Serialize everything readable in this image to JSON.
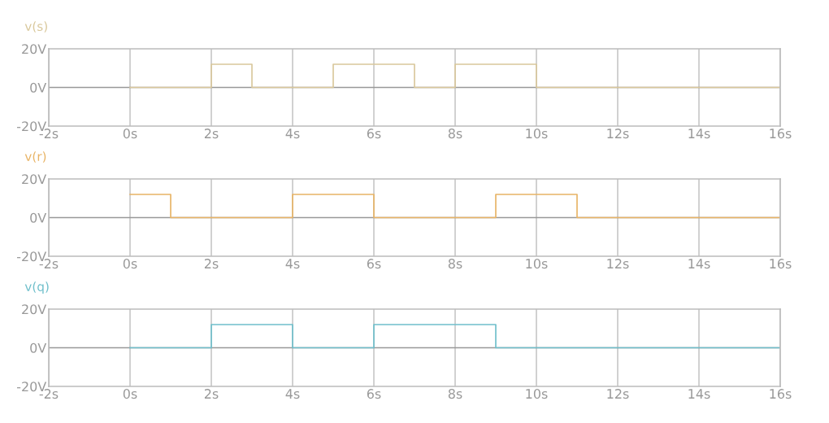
{
  "chart_data": [
    {
      "type": "step",
      "series": [
        {
          "name": "v(s)",
          "color": "#d9c89c",
          "x": [
            0,
            2,
            3,
            5,
            7,
            8,
            10,
            16
          ],
          "values": [
            0,
            12,
            0,
            12,
            0,
            12,
            0,
            0
          ]
        }
      ],
      "xlim": [
        -2,
        16
      ],
      "ylim": [
        -20,
        20
      ],
      "xticks": [
        {
          "value": -2,
          "label": "-2s"
        },
        {
          "value": 0,
          "label": "0s"
        },
        {
          "value": 2,
          "label": "2s"
        },
        {
          "value": 4,
          "label": "4s"
        },
        {
          "value": 6,
          "label": "6s"
        },
        {
          "value": 8,
          "label": "8s"
        },
        {
          "value": 10,
          "label": "10s"
        },
        {
          "value": 12,
          "label": "12s"
        },
        {
          "value": 14,
          "label": "14s"
        },
        {
          "value": 16,
          "label": "16s"
        }
      ],
      "yticks": [
        {
          "value": -20,
          "label": "-20V"
        },
        {
          "value": 0,
          "label": "0V"
        },
        {
          "value": 20,
          "label": "20V"
        }
      ],
      "grid": "x",
      "ref_lines": [
        {
          "axis": "y",
          "value": 0,
          "color": "#999999"
        }
      ]
    },
    {
      "type": "step",
      "series": [
        {
          "name": "v(r)",
          "color": "#e8b466",
          "x": [
            0,
            1,
            4,
            6,
            9,
            11,
            16
          ],
          "values": [
            12,
            0,
            12,
            0,
            12,
            0,
            0
          ]
        }
      ],
      "xlim": [
        -2,
        16
      ],
      "ylim": [
        -20,
        20
      ],
      "xticks": [
        {
          "value": -2,
          "label": "-2s"
        },
        {
          "value": 0,
          "label": "0s"
        },
        {
          "value": 2,
          "label": "2s"
        },
        {
          "value": 4,
          "label": "4s"
        },
        {
          "value": 6,
          "label": "6s"
        },
        {
          "value": 8,
          "label": "8s"
        },
        {
          "value": 10,
          "label": "10s"
        },
        {
          "value": 12,
          "label": "12s"
        },
        {
          "value": 14,
          "label": "14s"
        },
        {
          "value": 16,
          "label": "16s"
        }
      ],
      "yticks": [
        {
          "value": -20,
          "label": "-20V"
        },
        {
          "value": 0,
          "label": "0V"
        },
        {
          "value": 20,
          "label": "20V"
        }
      ],
      "grid": "x",
      "ref_lines": [
        {
          "axis": "y",
          "value": 0,
          "color": "#999999"
        }
      ]
    },
    {
      "type": "step",
      "series": [
        {
          "name": "v(q)",
          "color": "#6fbfcb",
          "x": [
            0,
            2,
            4,
            6,
            9,
            16
          ],
          "values": [
            0,
            12,
            0,
            12,
            0,
            0
          ]
        }
      ],
      "xlim": [
        -2,
        16
      ],
      "ylim": [
        -20,
        20
      ],
      "xticks": [
        {
          "value": -2,
          "label": "-2s"
        },
        {
          "value": 0,
          "label": "0s"
        },
        {
          "value": 2,
          "label": "2s"
        },
        {
          "value": 4,
          "label": "4s"
        },
        {
          "value": 6,
          "label": "6s"
        },
        {
          "value": 8,
          "label": "8s"
        },
        {
          "value": 10,
          "label": "10s"
        },
        {
          "value": 12,
          "label": "12s"
        },
        {
          "value": 14,
          "label": "14s"
        },
        {
          "value": 16,
          "label": "16s"
        }
      ],
      "yticks": [
        {
          "value": -20,
          "label": "-20V"
        },
        {
          "value": 0,
          "label": "0V"
        },
        {
          "value": 20,
          "label": "20V"
        }
      ],
      "grid": "x",
      "ref_lines": [
        {
          "axis": "y",
          "value": 0,
          "color": "#999999"
        }
      ]
    }
  ]
}
